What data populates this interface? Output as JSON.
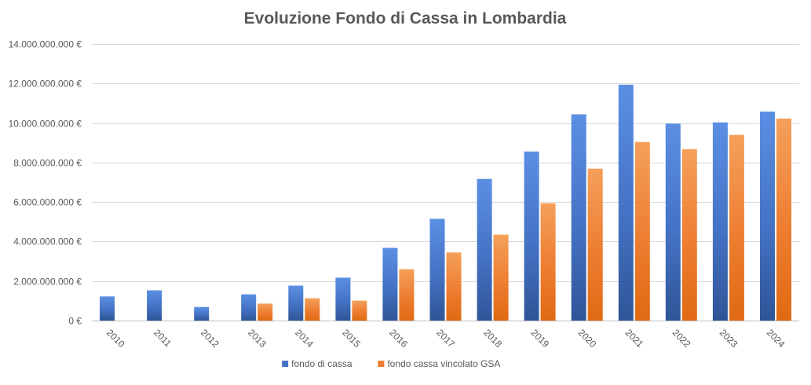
{
  "chart_data": {
    "type": "bar",
    "title": "Evoluzione Fondo di Cassa in Lombardia",
    "xlabel": "",
    "ylabel": "",
    "ylim": [
      0,
      14000000000
    ],
    "yticks": [
      {
        "value": 0,
        "label": "0 €"
      },
      {
        "value": 2000000000,
        "label": "2.000.000.000 €"
      },
      {
        "value": 4000000000,
        "label": "4.000.000.000 €"
      },
      {
        "value": 6000000000,
        "label": "6.000.000.000 €"
      },
      {
        "value": 8000000000,
        "label": "8.000.000.000 €"
      },
      {
        "value": 10000000000,
        "label": "10.000.000.000 €"
      },
      {
        "value": 12000000000,
        "label": "12.000.000.000 €"
      },
      {
        "value": 14000000000,
        "label": "14.000.000.000 €"
      }
    ],
    "categories": [
      "2010",
      "2011",
      "2012",
      "2013",
      "2014",
      "2015",
      "2016",
      "2017",
      "2018",
      "2019",
      "2020",
      "2021",
      "2022",
      "2023",
      "2024"
    ],
    "series": [
      {
        "name": "fondo di cassa",
        "color": "#4472C4",
        "color_light": "#5B8FE3",
        "color_dark": "#2F5597",
        "values": [
          1220000000,
          1530000000,
          690000000,
          1330000000,
          1770000000,
          2170000000,
          3680000000,
          5150000000,
          7170000000,
          8560000000,
          10440000000,
          11940000000,
          9970000000,
          10030000000,
          10580000000
        ]
      },
      {
        "name": "fondo cassa vincolato GSA",
        "color": "#ED7D31",
        "color_light": "#F5A05A",
        "color_dark": "#E06A12",
        "values": [
          0,
          0,
          0,
          860000000,
          1130000000,
          1010000000,
          2600000000,
          3450000000,
          4350000000,
          5940000000,
          7690000000,
          9040000000,
          8680000000,
          9400000000,
          10230000000
        ]
      }
    ],
    "grid": true,
    "legend": "bottom"
  }
}
